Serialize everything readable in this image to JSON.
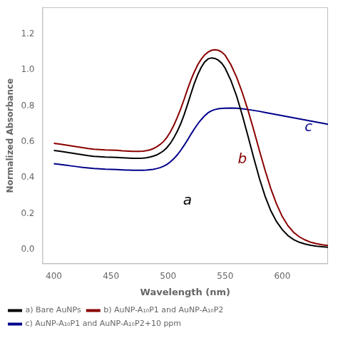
{
  "chart_data": {
    "type": "line",
    "xlabel": "Wavelength (nm)",
    "ylabel": "Normalized Absorbance",
    "xlim": [
      390,
      640
    ],
    "ylim": [
      -0.08,
      1.35
    ],
    "xticks": [
      400,
      450,
      500,
      550,
      600
    ],
    "yticks": [
      {
        "value": 0.0,
        "label": "0.0"
      },
      0.2,
      0.4,
      0.6,
      0.8,
      {
        "value": 1.0,
        "label": "1.0"
      },
      1.2
    ],
    "grid": false,
    "legend": "lower left",
    "x": [
      400,
      405,
      410,
      415,
      420,
      425,
      430,
      435,
      440,
      445,
      450,
      455,
      460,
      463,
      466,
      469,
      472,
      475,
      478,
      481,
      484,
      487,
      490,
      493,
      496,
      499,
      502,
      505,
      508,
      511,
      514,
      517,
      520,
      523,
      526,
      529,
      532,
      535,
      538,
      541,
      544,
      547,
      550,
      555,
      560,
      565,
      570,
      575,
      580,
      585,
      590,
      595,
      600,
      605,
      610,
      615,
      620,
      625,
      630,
      635,
      640
    ],
    "series": [
      {
        "name": "a) Bare AuNPs",
        "color": "#000000",
        "values": [
          0.552,
          0.548,
          0.543,
          0.538,
          0.533,
          0.528,
          0.523,
          0.519,
          0.517,
          0.515,
          0.514,
          0.513,
          0.511,
          0.51,
          0.509,
          0.508,
          0.508,
          0.508,
          0.509,
          0.511,
          0.515,
          0.52,
          0.527,
          0.537,
          0.55,
          0.568,
          0.592,
          0.622,
          0.658,
          0.7,
          0.75,
          0.808,
          0.868,
          0.926,
          0.975,
          1.015,
          1.045,
          1.062,
          1.068,
          1.065,
          1.055,
          1.038,
          1.01,
          0.942,
          0.855,
          0.748,
          0.63,
          0.51,
          0.395,
          0.295,
          0.215,
          0.155,
          0.11,
          0.077,
          0.055,
          0.04,
          0.03,
          0.023,
          0.018,
          0.015,
          0.012
        ]
      },
      {
        "name": "b) AuNP-A₁₀P1 and AuNP-A₁₀P2",
        "color": "#8b0000",
        "values": [
          0.592,
          0.588,
          0.583,
          0.578,
          0.573,
          0.568,
          0.563,
          0.559,
          0.557,
          0.555,
          0.554,
          0.553,
          0.55,
          0.549,
          0.548,
          0.547,
          0.547,
          0.547,
          0.548,
          0.551,
          0.555,
          0.562,
          0.572,
          0.585,
          0.602,
          0.625,
          0.655,
          0.692,
          0.735,
          0.783,
          0.836,
          0.892,
          0.945,
          0.99,
          1.03,
          1.06,
          1.085,
          1.1,
          1.11,
          1.113,
          1.11,
          1.1,
          1.082,
          1.03,
          0.96,
          0.874,
          0.775,
          0.665,
          0.55,
          0.44,
          0.338,
          0.252,
          0.183,
          0.132,
          0.095,
          0.07,
          0.053,
          0.04,
          0.032,
          0.026,
          0.022
        ]
      },
      {
        "name": "c) AuNP-A₁₀P1 and AuNP-A₁₀P2+10 ppm",
        "color": "#00008b",
        "values": [
          0.478,
          0.474,
          0.47,
          0.466,
          0.462,
          0.458,
          0.455,
          0.452,
          0.45,
          0.448,
          0.447,
          0.446,
          0.444,
          0.443,
          0.443,
          0.442,
          0.442,
          0.442,
          0.442,
          0.443,
          0.445,
          0.447,
          0.451,
          0.456,
          0.464,
          0.474,
          0.488,
          0.506,
          0.527,
          0.552,
          0.58,
          0.61,
          0.642,
          0.672,
          0.7,
          0.724,
          0.745,
          0.762,
          0.773,
          0.78,
          0.784,
          0.786,
          0.787,
          0.788,
          0.787,
          0.784,
          0.78,
          0.775,
          0.77,
          0.764,
          0.758,
          0.752,
          0.746,
          0.74,
          0.734,
          0.728,
          0.722,
          0.716,
          0.71,
          0.704,
          0.698
        ]
      }
    ],
    "annotations": [
      {
        "text": "a",
        "x": 517,
        "y": 0.27,
        "color": "#000000"
      },
      {
        "text": "b",
        "x": 565,
        "y": 0.5,
        "color": "#8b0000"
      },
      {
        "text": "c",
        "x": 623,
        "y": 0.68,
        "color": "#00008b"
      }
    ]
  }
}
